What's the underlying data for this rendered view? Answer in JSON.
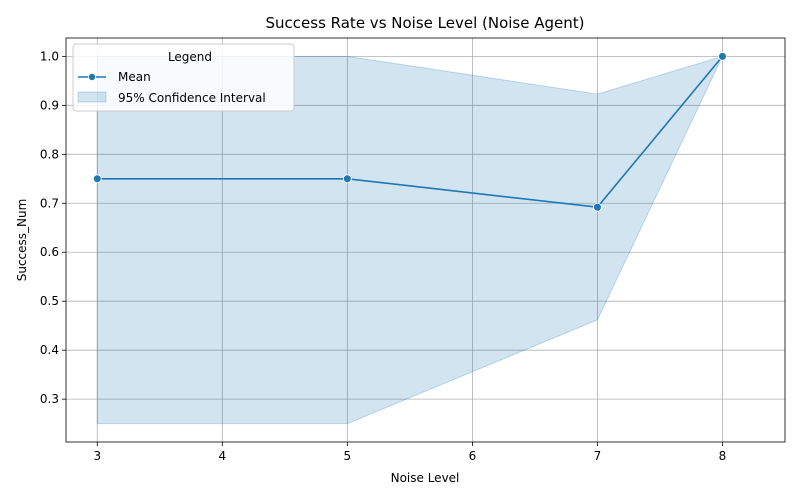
{
  "chart_data": {
    "type": "line",
    "title": "Success Rate vs Noise Level (Noise Agent)",
    "xlabel": "Noise Level",
    "ylabel": "Success_Num",
    "x": [
      3,
      5,
      7,
      8
    ],
    "series": [
      {
        "name": "Mean",
        "values": [
          0.75,
          0.75,
          0.692,
          1.0
        ],
        "color": "#1f77b4",
        "marker": "circle"
      }
    ],
    "confidence_interval": {
      "name": "95% Confidence Interval",
      "lower": [
        0.25,
        0.25,
        0.462,
        1.0
      ],
      "upper": [
        1.0,
        1.0,
        0.923,
        1.0
      ],
      "color": "#1f77b4",
      "opacity": 0.2
    },
    "xlim": [
      2.75,
      8.5
    ],
    "ylim": [
      0.2125,
      1.0375
    ],
    "xticks": [
      "3",
      "4",
      "5",
      "6",
      "7",
      "8"
    ],
    "yticks": [
      "0.3",
      "0.4",
      "0.5",
      "0.6",
      "0.7",
      "0.8",
      "0.9",
      "1.0"
    ],
    "grid": true,
    "legend": {
      "title": "Legend",
      "placement": "top-left"
    }
  }
}
